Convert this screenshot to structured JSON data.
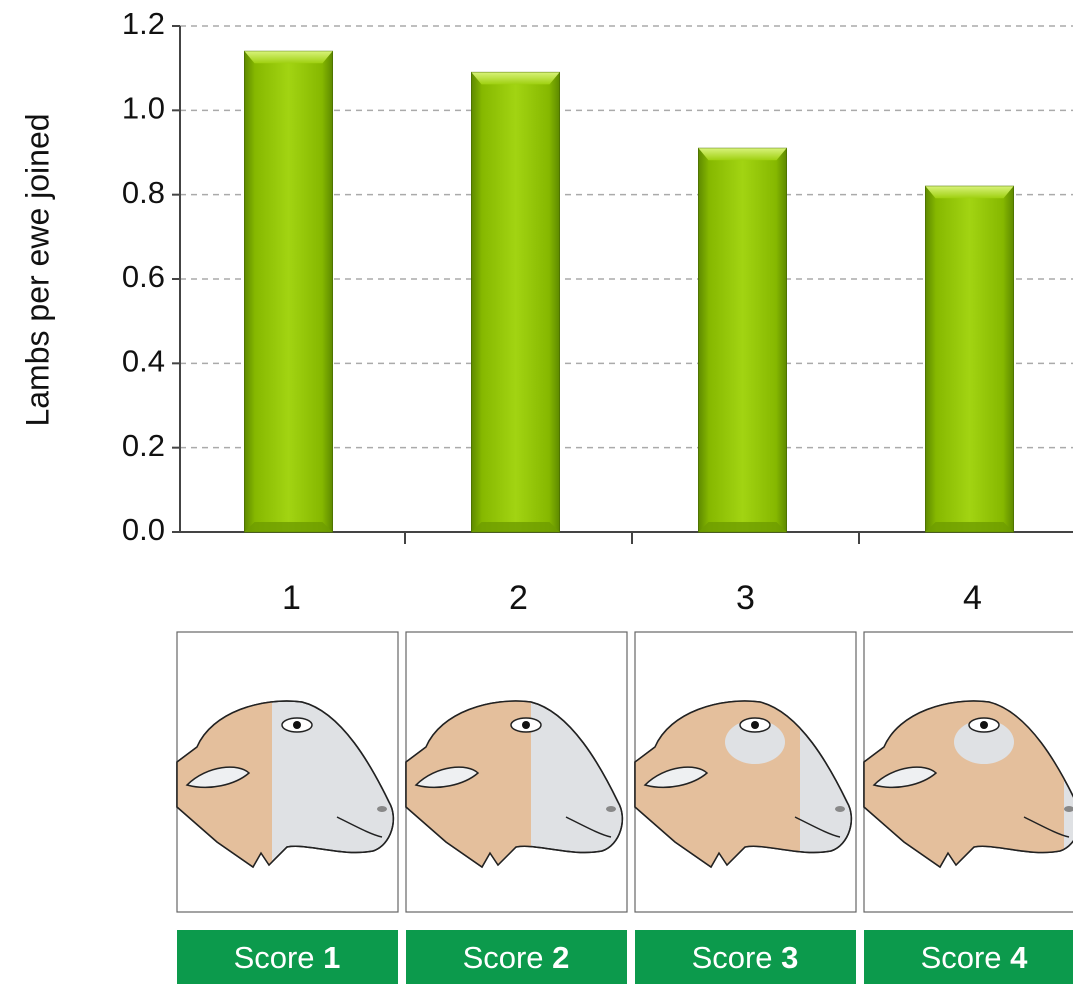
{
  "chart_data": {
    "type": "bar",
    "y_axis_label": "Lambs per ewe joined",
    "categories": [
      "1",
      "2",
      "3",
      "4"
    ],
    "values": [
      1.14,
      1.09,
      0.91,
      0.82
    ],
    "color": "#8fc400",
    "ylim": [
      0,
      1.2
    ],
    "yticks": [
      {
        "value": 0,
        "label": "0.0"
      },
      {
        "value": 0.2,
        "label": "0.2"
      },
      {
        "value": 0.4,
        "label": "0.4"
      },
      {
        "value": 0.6,
        "label": "0.6"
      },
      {
        "value": 0.8,
        "label": "0.8"
      },
      {
        "value": 1,
        "label": "1.0"
      },
      {
        "value": 1.2,
        "label": "1.2"
      }
    ],
    "grid": true,
    "panels": [
      {
        "word": "Score",
        "number": "1"
      },
      {
        "word": "Score",
        "number": "2"
      },
      {
        "word": "Score",
        "number": "3"
      },
      {
        "word": "Score",
        "number": "4"
      }
    ]
  }
}
